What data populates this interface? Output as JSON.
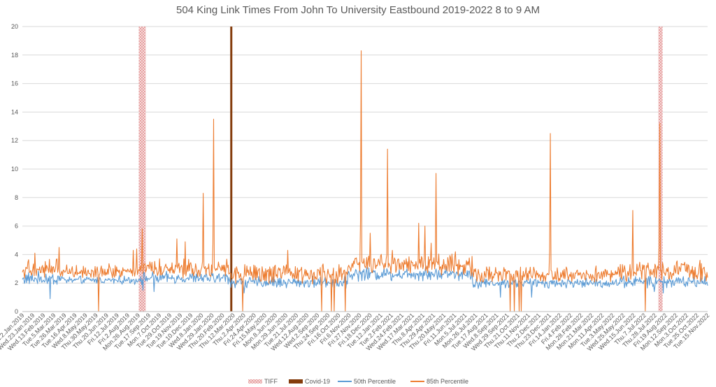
{
  "chart_data": {
    "type": "line",
    "title": "504 King Link Times From John To University Eastbound 2019-2022 8 to 9 AM",
    "xlabel": "",
    "ylabel": "",
    "ylim": [
      0,
      20
    ],
    "y_ticks": [
      0,
      2,
      4,
      6,
      8,
      10,
      12,
      14,
      16,
      18,
      20
    ],
    "grid": "horizontal",
    "legend_position": "bottom",
    "colors": {
      "tiff": "#E6A0A0",
      "covid": "#843C0C",
      "p50": "#5B9BD5",
      "p85": "#ED7D31",
      "grid": "#D9D9D9",
      "text": "#595959"
    },
    "x_tick_labels": [
      "Wed.2.Jan.2019",
      "Wed.23.Jan.2019",
      "Wed.13.Feb.2019",
      "Tue.5.Mar.2019",
      "Tue.26.Mar.2019",
      "Tue.16.Apr.2019",
      "Wed.8.May.2019",
      "Thu.30.May.2019",
      "Thu.20.Jun.2019",
      "Fri.12.Jul.2019",
      "Fri.2.Aug.2019",
      "Mon.26.Aug.2019",
      "Tue.17.Sep.2019",
      "Mon.7.Oct.2019",
      "Tue.29.Oct.2019",
      "Tue.19.Nov.2019",
      "Tue.10.Dec.2019",
      "Wed.8.Jan.2020",
      "Wed.29.Jan.2020",
      "Thu.20.Feb.2020",
      "Thu.12.Mar.2020",
      "Thu.2.Apr.2020",
      "Fri.24.Apr.2020",
      "Fri.15.May.2020",
      "Mon.8.Jun.2020",
      "Mon.29.Jun.2020",
      "Tue.21.Jul.2020",
      "Wed.12.Aug.2020",
      "Wed.2.Sep.2020",
      "Thu.24.Sep.2020",
      "Fri.16.Oct.2020",
      "Fri.6.Nov.2020",
      "Fri.27.Nov.2020",
      "Fri.18.Dec.2020",
      "Tue.12.Jan.2021",
      "Tue.2.Feb.2021",
      "Wed.24.Feb.2021",
      "Wed.17.Mar.2021",
      "Thu.8.Apr.2021",
      "Thu.29.Apr.2021",
      "Thu.20.May.2021",
      "Fri.11.Jun.2021",
      "Mon.5.Jul.2021",
      "Mon.26.Jul.2021",
      "Tue.17.Aug.2021",
      "Wed.8.Sep.2021",
      "Wed.29.Sep.2021",
      "Thu.21.Oct.2021",
      "Thu.11.Nov.2021",
      "Thu.2.Dec.2021",
      "Thu.23.Dec.2021",
      "Fri.14.Jan.2022",
      "Fri.4.Feb.2022",
      "Mon.28.Feb.2022",
      "Mon.21.Mar.2022",
      "Mon.11.Apr.2022",
      "Tue.3.May.2022",
      "Wed.25.May.2022",
      "Wed.15.Jun.2022",
      "Thu.7.Jul.2022",
      "Thu.28.Jul.2022",
      "Fri.19.Aug.2022",
      "Mon.12.Sep.2022",
      "Mon.3.Oct.2022",
      "Tue.25.Oct.2022",
      "Tue.15.Nov.2022"
    ],
    "n_days": 990,
    "events": [
      {
        "name": "TIFF",
        "type": "band",
        "start_day": 168,
        "end_day": 178,
        "value": 20
      },
      {
        "name": "Covid-19",
        "type": "bar",
        "start_day": 300,
        "end_day": 302,
        "value": 20
      },
      {
        "name": "TIFF",
        "type": "band",
        "start_day": 918,
        "end_day": 924,
        "value": 20
      }
    ],
    "series": [
      {
        "name": "50th Percentile",
        "color": "#5B9BD5",
        "segments": [
          {
            "start": 0,
            "end": 60,
            "base": 2.3,
            "noise": 0.35
          },
          {
            "start": 60,
            "end": 168,
            "base": 2.2,
            "noise": 0.2
          },
          {
            "start": 168,
            "end": 300,
            "base": 2.35,
            "noise": 0.3
          },
          {
            "start": 300,
            "end": 470,
            "base": 2.05,
            "noise": 0.3
          },
          {
            "start": 470,
            "end": 650,
            "base": 2.65,
            "noise": 0.35
          },
          {
            "start": 650,
            "end": 860,
            "base": 2.0,
            "noise": 0.25
          },
          {
            "start": 860,
            "end": 990,
            "base": 2.1,
            "noise": 0.3
          }
        ],
        "points": [
          {
            "day": 40,
            "value": 0.9
          },
          {
            "day": 174,
            "value": 1.5
          },
          {
            "day": 190,
            "value": 1.4
          },
          {
            "day": 320,
            "value": 1.3
          },
          {
            "day": 582,
            "value": 3.2
          },
          {
            "day": 690,
            "value": 1.0
          },
          {
            "day": 735,
            "value": 1.0
          },
          {
            "day": 912,
            "value": 1.4
          },
          {
            "day": 925,
            "value": 1.3
          }
        ]
      },
      {
        "name": "85th Percentile",
        "color": "#ED7D31",
        "segments": [
          {
            "start": 0,
            "end": 60,
            "base": 3.0,
            "noise": 0.5
          },
          {
            "start": 60,
            "end": 168,
            "base": 2.85,
            "noise": 0.35
          },
          {
            "start": 168,
            "end": 300,
            "base": 3.05,
            "noise": 0.5
          },
          {
            "start": 300,
            "end": 470,
            "base": 2.6,
            "noise": 0.5
          },
          {
            "start": 470,
            "end": 650,
            "base": 3.3,
            "noise": 0.55
          },
          {
            "start": 650,
            "end": 860,
            "base": 2.6,
            "noise": 0.4
          },
          {
            "start": 860,
            "end": 990,
            "base": 2.85,
            "noise": 0.5
          }
        ],
        "points": [
          {
            "day": 18,
            "value": 4.1
          },
          {
            "day": 53,
            "value": 4.5
          },
          {
            "day": 110,
            "value": 0.0
          },
          {
            "day": 160,
            "value": 4.3
          },
          {
            "day": 165,
            "value": 4.4
          },
          {
            "day": 173,
            "value": 5.8
          },
          {
            "day": 223,
            "value": 5.1
          },
          {
            "day": 235,
            "value": 4.9
          },
          {
            "day": 261,
            "value": 8.3
          },
          {
            "day": 276,
            "value": 13.5
          },
          {
            "day": 318,
            "value": 0.0
          },
          {
            "day": 383,
            "value": 4.3
          },
          {
            "day": 432,
            "value": 0.0
          },
          {
            "day": 446,
            "value": 0.0
          },
          {
            "day": 450,
            "value": 0.0
          },
          {
            "day": 466,
            "value": 0.0
          },
          {
            "day": 489,
            "value": 18.3
          },
          {
            "day": 502,
            "value": 5.5
          },
          {
            "day": 527,
            "value": 11.4
          },
          {
            "day": 534,
            "value": 4.3
          },
          {
            "day": 572,
            "value": 6.2
          },
          {
            "day": 581,
            "value": 6.0
          },
          {
            "day": 590,
            "value": 4.8
          },
          {
            "day": 597,
            "value": 9.7
          },
          {
            "day": 625,
            "value": 4.2
          },
          {
            "day": 704,
            "value": 0.0
          },
          {
            "day": 710,
            "value": 0.0
          },
          {
            "day": 717,
            "value": 0.0
          },
          {
            "day": 720,
            "value": 0.0
          },
          {
            "day": 762,
            "value": 12.5
          },
          {
            "day": 881,
            "value": 7.1
          },
          {
            "day": 899,
            "value": 0.0
          },
          {
            "day": 920,
            "value": 13.2
          },
          {
            "day": 978,
            "value": 3.6
          }
        ]
      }
    ]
  }
}
